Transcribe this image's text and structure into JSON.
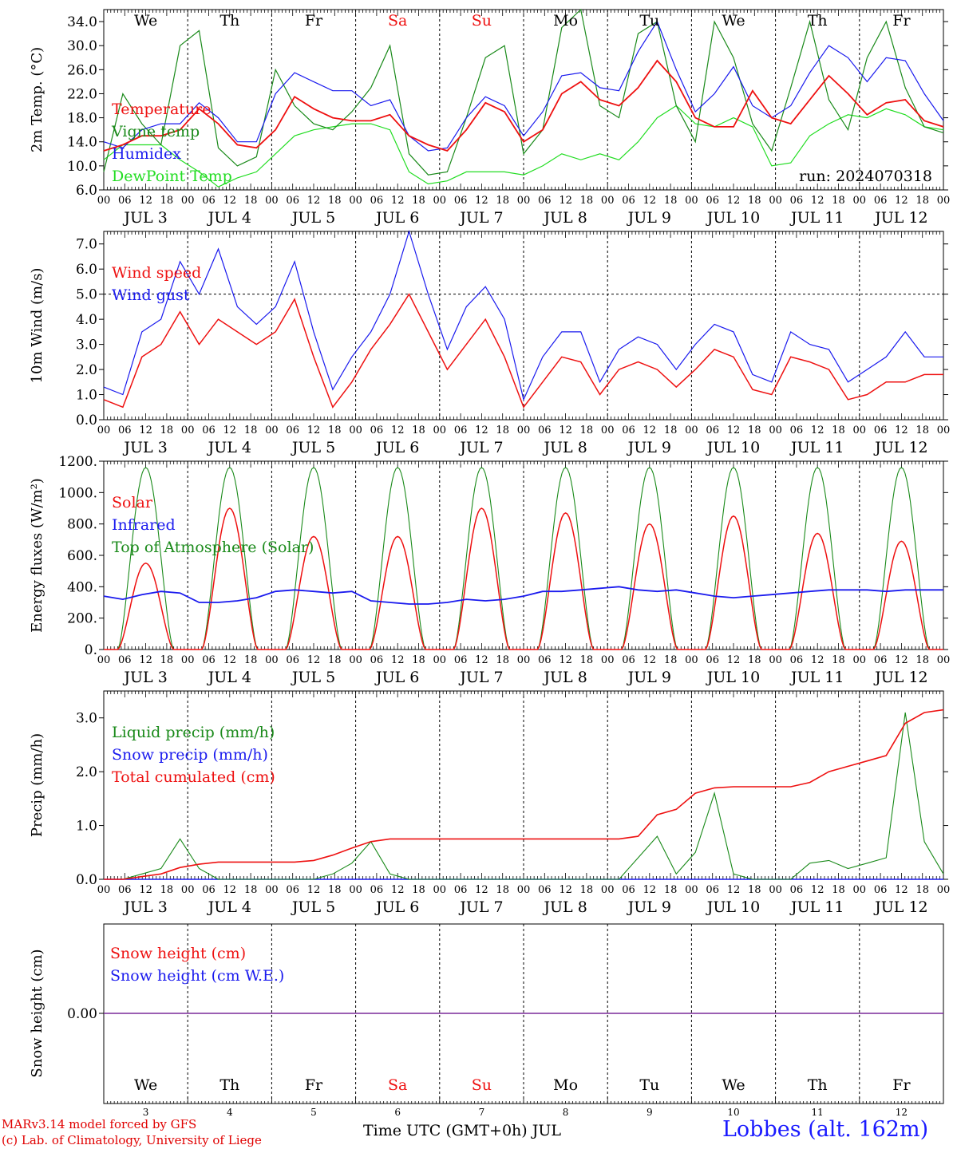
{
  "colors": {
    "red": "#ee1111",
    "green": "#1a8a1a",
    "blue": "#1a1aee",
    "lightgreen": "#22dd22",
    "purple": "#7a2a9a",
    "weekend": "#ee1111"
  },
  "days": [
    "We",
    "Th",
    "Fr",
    "Sa",
    "Su",
    "Mo",
    "Tu",
    "We",
    "Th",
    "Fr"
  ],
  "weekend_days": [
    "Sa",
    "Su"
  ],
  "dates": [
    "JUL  3",
    "JUL  4",
    "JUL  5",
    "JUL  6",
    "JUL  7",
    "JUL  8",
    "JUL  9",
    "JUL 10",
    "JUL 11",
    "JUL 12"
  ],
  "date_numbers": [
    "3",
    "4",
    "5",
    "6",
    "7",
    "8",
    "9",
    "10",
    "11",
    "12"
  ],
  "hour_labels": [
    "00",
    "06",
    "12",
    "18"
  ],
  "footer": {
    "model": "MARv3.14 model forced by GFS",
    "copyright": "(c) Lab. of Climatology, University of Liege",
    "time_label": "Time UTC (GMT+0h) JUL",
    "location": "Lobbes (alt. 162m)"
  },
  "chart_data": [
    {
      "type": "line",
      "ylabel": "2m Temp. (°C)",
      "ylim": [
        6,
        36
      ],
      "yticks": [
        "6.0",
        "10.0",
        "14.0",
        "18.0",
        "22.0",
        "26.0",
        "30.0",
        "34.0"
      ],
      "annotation": "run: 2024070318",
      "x": "hours since 3 JUL 00 UTC, step 6h (0..240)",
      "series": [
        {
          "name": "Temperature",
          "color": "red",
          "values": [
            12.5,
            13.5,
            15,
            15,
            16,
            19.5,
            17,
            13.5,
            13,
            16,
            21.5,
            19.5,
            18,
            17.5,
            17.5,
            18.5,
            15,
            13.5,
            12.5,
            16,
            20.5,
            19,
            14,
            16,
            22,
            24,
            21,
            20,
            23,
            27.5,
            24,
            18,
            16.5,
            16.5,
            22.5,
            18,
            17,
            21,
            25,
            22,
            18.5,
            20.5,
            21,
            17.5,
            16.5
          ]
        },
        {
          "name": "Vigne temp",
          "color": "green",
          "values": [
            9,
            22,
            17,
            13.5,
            30,
            32.5,
            13,
            10,
            11.5,
            26,
            20,
            17,
            16,
            19,
            23,
            30,
            12,
            8.5,
            9,
            18,
            28,
            30,
            12,
            16,
            33,
            36,
            20,
            18,
            32,
            34,
            20,
            14,
            34,
            28,
            17,
            12.5,
            23,
            34,
            21,
            16,
            28,
            34,
            23,
            16.5,
            15.5
          ]
        },
        {
          "name": "Humidex",
          "color": "blue",
          "values": [
            14,
            13,
            16,
            17,
            17,
            20.5,
            18,
            14,
            14,
            22,
            25.5,
            24,
            22.5,
            22.5,
            20,
            21,
            15,
            12.5,
            13,
            18,
            21.5,
            20,
            15,
            19,
            25,
            25.5,
            23,
            22.5,
            29,
            34,
            26,
            19,
            22,
            26.5,
            20,
            18,
            20,
            25.5,
            30,
            28,
            24,
            28,
            27.5,
            22,
            17.5
          ]
        },
        {
          "name": "DewPoint Temp",
          "color": "lightgreen",
          "values": [
            11,
            13.5,
            13.5,
            13.5,
            11,
            9,
            6.5,
            8,
            9,
            12,
            15,
            16,
            16.5,
            17,
            17,
            16,
            9,
            7,
            7.5,
            9,
            9,
            9,
            8.5,
            10,
            12,
            11,
            12,
            11,
            14,
            18,
            20,
            17,
            16.5,
            18,
            16.5,
            10,
            10.5,
            15,
            17,
            18.5,
            18,
            19.5,
            18.5,
            16.5,
            16
          ]
        }
      ]
    },
    {
      "type": "line",
      "ylabel": "10m Wind (m/s)",
      "ylim": [
        0,
        7.5
      ],
      "yticks": [
        "0.0",
        "1.0",
        "2.0",
        "3.0",
        "4.0",
        "5.0",
        "6.0",
        "7.0"
      ],
      "reference_line": 5.0,
      "series": [
        {
          "name": "Wind speed",
          "color": "red",
          "values": [
            0.8,
            0.5,
            2.5,
            3.0,
            4.3,
            3.0,
            4.0,
            3.5,
            3.0,
            3.5,
            4.8,
            2.5,
            0.5,
            1.5,
            2.8,
            3.8,
            5.0,
            3.5,
            2.0,
            3.0,
            4.0,
            2.5,
            0.5,
            1.5,
            2.5,
            2.3,
            1.0,
            2.0,
            2.3,
            2.0,
            1.3,
            2.0,
            2.8,
            2.5,
            1.2,
            1.0,
            2.5,
            2.3,
            2.0,
            0.8,
            1.0,
            1.5,
            1.5,
            1.8,
            1.8
          ]
        },
        {
          "name": "Wind gust",
          "color": "blue",
          "values": [
            1.3,
            1.0,
            3.5,
            4.0,
            6.3,
            5.0,
            6.8,
            4.5,
            3.8,
            4.5,
            6.3,
            3.5,
            1.2,
            2.5,
            3.5,
            5.0,
            7.5,
            5.0,
            2.8,
            4.5,
            5.3,
            4.0,
            0.8,
            2.5,
            3.5,
            3.5,
            1.5,
            2.8,
            3.3,
            3.0,
            2.0,
            3.0,
            3.8,
            3.5,
            1.8,
            1.5,
            3.5,
            3.0,
            2.8,
            1.5,
            2.0,
            2.5,
            3.5,
            2.5,
            2.5
          ]
        }
      ]
    },
    {
      "type": "line",
      "ylabel": "Energy fluxes (W/m²)",
      "ylim": [
        0,
        1200
      ],
      "yticks": [
        "0.",
        "200.",
        "400.",
        "600.",
        "800.",
        "1000.",
        "1200."
      ],
      "series": [
        {
          "name": "Solar",
          "color": "red",
          "day_peaks": [
            550,
            900,
            720,
            720,
            900,
            870,
            800,
            850,
            740,
            690
          ]
        },
        {
          "name": "Infrared",
          "color": "blue",
          "values": [
            340,
            320,
            350,
            370,
            360,
            300,
            300,
            310,
            330,
            370,
            380,
            370,
            360,
            370,
            310,
            300,
            290,
            290,
            300,
            320,
            310,
            320,
            340,
            370,
            370,
            380,
            390,
            400,
            380,
            370,
            380,
            360,
            340,
            330,
            340,
            350,
            360,
            370,
            380,
            380,
            380,
            370,
            380,
            380,
            380
          ]
        },
        {
          "name": "Top of Atmosphere (Solar)",
          "color": "green",
          "day_peaks": [
            1160,
            1160,
            1160,
            1160,
            1160,
            1160,
            1160,
            1160,
            1160,
            1160
          ]
        }
      ]
    },
    {
      "type": "line",
      "ylabel": "Precip (mm/h)",
      "ylim": [
        0,
        3.5
      ],
      "yticks": [
        "0.0",
        "1.0",
        "2.0",
        "3.0"
      ],
      "series": [
        {
          "name": "Liquid precip (mm/h)",
          "color": "green",
          "values": [
            0,
            0,
            0.1,
            0.2,
            0.75,
            0.2,
            0,
            0,
            0,
            0,
            0,
            0,
            0.1,
            0.3,
            0.7,
            0.1,
            0,
            0,
            0,
            0,
            0,
            0,
            0,
            0,
            0,
            0,
            0,
            0,
            0.4,
            0.8,
            0.1,
            0.5,
            1.6,
            0.1,
            0,
            0,
            0,
            0.3,
            0.35,
            0.2,
            0.3,
            0.4,
            3.1,
            0.7,
            0.1
          ]
        },
        {
          "name": "Snow precip (mm/h)",
          "color": "blue",
          "values": [
            0,
            0,
            0,
            0,
            0,
            0,
            0,
            0,
            0,
            0,
            0,
            0,
            0,
            0,
            0,
            0,
            0,
            0,
            0,
            0,
            0,
            0,
            0,
            0,
            0,
            0,
            0,
            0,
            0,
            0,
            0,
            0,
            0,
            0,
            0,
            0,
            0,
            0,
            0,
            0,
            0,
            0,
            0,
            0,
            0
          ]
        },
        {
          "name": "Total cumulated (cm)",
          "color": "red",
          "values": [
            0,
            0,
            0.05,
            0.1,
            0.22,
            0.28,
            0.32,
            0.32,
            0.32,
            0.32,
            0.32,
            0.35,
            0.45,
            0.58,
            0.7,
            0.75,
            0.75,
            0.75,
            0.75,
            0.75,
            0.75,
            0.75,
            0.75,
            0.75,
            0.75,
            0.75,
            0.75,
            0.75,
            0.8,
            1.2,
            1.3,
            1.6,
            1.7,
            1.72,
            1.72,
            1.72,
            1.72,
            1.8,
            2.0,
            2.1,
            2.2,
            2.3,
            2.9,
            3.1,
            3.15
          ]
        }
      ]
    },
    {
      "type": "line",
      "ylabel": "Snow height (cm)",
      "yticks": [
        "0.00"
      ],
      "series": [
        {
          "name": "Snow height (cm)",
          "color": "red",
          "values": [
            0,
            0
          ]
        },
        {
          "name": "Snow height (cm W.E.)",
          "color": "blue",
          "values": [
            0,
            0
          ]
        }
      ]
    }
  ]
}
